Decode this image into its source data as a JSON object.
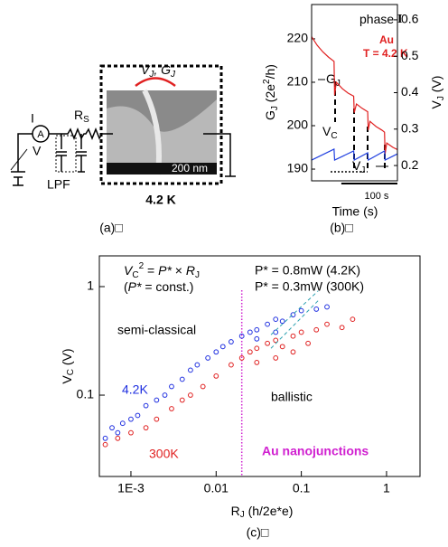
{
  "panel_a": {
    "vj_gj": [
      "V",
      "J",
      ", G",
      "J"
    ],
    "rs": [
      "R",
      "S"
    ],
    "current": "I",
    "voltage": "V",
    "ammeter": "A",
    "lpf": "LPF",
    "scale": "200 nm",
    "temperature": "4.2 K",
    "caption": "(a)□"
  },
  "chart_data": [
    {
      "type": "line",
      "caption": "(b)□",
      "xlabel": "Time (s)",
      "ylabel": [
        "G",
        "J",
        " (2e",
        "2",
        "/h)"
      ],
      "y2label": [
        "V",
        "J",
        " (V)"
      ],
      "xlim": [
        0,
        153
      ],
      "scalebar": {
        "value": 100,
        "label": "100 s"
      },
      "ylim": [
        187.3,
        227.9
      ],
      "yticks": [
        190,
        200,
        210,
        220
      ],
      "y2lim": [
        0.158,
        0.642
      ],
      "y2ticks": [
        0.2,
        0.3,
        0.4,
        0.5,
        0.6
      ],
      "series": [
        {
          "color": "#e02020",
          "x": [
            0,
            10,
            20,
            30,
            40,
            41,
            44,
            55,
            65,
            75,
            76,
            80,
            90,
            100,
            101,
            104,
            115,
            125,
            130,
            131,
            134,
            145,
            153
          ],
          "values": [
            220.5,
            218.5,
            217,
            215.8,
            214.8,
            207,
            210,
            208.5,
            207.5,
            206.8,
            203,
            205,
            204,
            203.2,
            199,
            201,
            199.8,
            199,
            198.5,
            193.5,
            196,
            195,
            194.5
          ]
        },
        {
          "color": "#2040e0",
          "axis": "y2",
          "x": [
            0,
            40,
            41,
            75,
            76,
            100,
            101,
            130,
            131,
            153
          ],
          "values": [
            0.215,
            0.245,
            0.215,
            0.24,
            0.215,
            0.235,
            0.215,
            0.24,
            0.215,
            0.232
          ]
        }
      ],
      "annotations": {
        "phase": [
          "phase ",
          "I"
        ],
        "metal": "Au",
        "temperature": "T = 4.2 K",
        "gj": [
          "G",
          "J"
        ],
        "vc": [
          "V",
          "C"
        ],
        "vj": [
          "V",
          "J"
        ]
      }
    },
    {
      "type": "scatter",
      "caption": "(c)□",
      "xscale": "log",
      "yscale": "log",
      "xlabel": [
        "R",
        "J",
        " (h/2e*e)"
      ],
      "ylabel": [
        "V",
        "C",
        " (V)"
      ],
      "xlim": [
        0.000426,
        2.47
      ],
      "ylim": [
        0.0178,
        1.92
      ],
      "xticks": [
        {
          "value": 0.001,
          "label": "1E-3"
        },
        0.01,
        0.1,
        1
      ],
      "yticks": [
        0.1,
        1
      ],
      "series": [
        {
          "name": "4.2K",
          "color": "#2030e0",
          "x": [
            0.0005,
            0.0006,
            0.0007,
            0.0008,
            0.001,
            0.0012,
            0.0015,
            0.002,
            0.0025,
            0.003,
            0.004,
            0.005,
            0.006,
            0.008,
            0.01,
            0.012,
            0.015,
            0.02,
            0.025,
            0.03,
            0.04,
            0.05,
            0.06,
            0.08,
            0.1,
            0.15,
            0.2,
            0.03,
            0.05
          ],
          "values": [
            0.04,
            0.05,
            0.045,
            0.055,
            0.06,
            0.065,
            0.08,
            0.09,
            0.1,
            0.12,
            0.14,
            0.17,
            0.19,
            0.22,
            0.25,
            0.28,
            0.31,
            0.35,
            0.38,
            0.4,
            0.45,
            0.5,
            0.48,
            0.55,
            0.6,
            0.62,
            0.65,
            0.33,
            0.38
          ]
        },
        {
          "name": "300K",
          "color": "#e02020",
          "x": [
            0.0005,
            0.0007,
            0.001,
            0.0015,
            0.002,
            0.003,
            0.004,
            0.005,
            0.007,
            0.01,
            0.015,
            0.02,
            0.025,
            0.03,
            0.04,
            0.05,
            0.06,
            0.08,
            0.1,
            0.12,
            0.15,
            0.2,
            0.3,
            0.4,
            0.03,
            0.05,
            0.08
          ],
          "values": [
            0.035,
            0.04,
            0.045,
            0.05,
            0.06,
            0.075,
            0.09,
            0.1,
            0.12,
            0.15,
            0.19,
            0.22,
            0.25,
            0.27,
            0.3,
            0.32,
            0.28,
            0.35,
            0.38,
            0.3,
            0.4,
            0.45,
            0.42,
            0.5,
            0.2,
            0.22,
            0.25
          ]
        }
      ],
      "guides": [
        {
          "x": [
            0.044,
            0.157
          ],
          "y": [
            0.36,
            0.91
          ],
          "color": "#2aa0b0"
        },
        {
          "x": [
            0.044,
            0.157
          ],
          "y": [
            0.27,
            0.74
          ],
          "color": "#2aa0b0"
        }
      ],
      "vline": {
        "x": 0.02,
        "color": "#d020d0"
      },
      "annotations": {
        "formula": [
          "V",
          "C",
          "2",
          " = ",
          "P*",
          " × ",
          "R",
          "J"
        ],
        "const": [
          "(",
          "P*",
          " = const.)"
        ],
        "p42": "P* = 0.8mW (4.2K)",
        "p300": "P* = 0.3mW (300K)",
        "semi": "semi-classical",
        "ballistic": "ballistic",
        "sample": "Au nanojunctions"
      }
    }
  ]
}
